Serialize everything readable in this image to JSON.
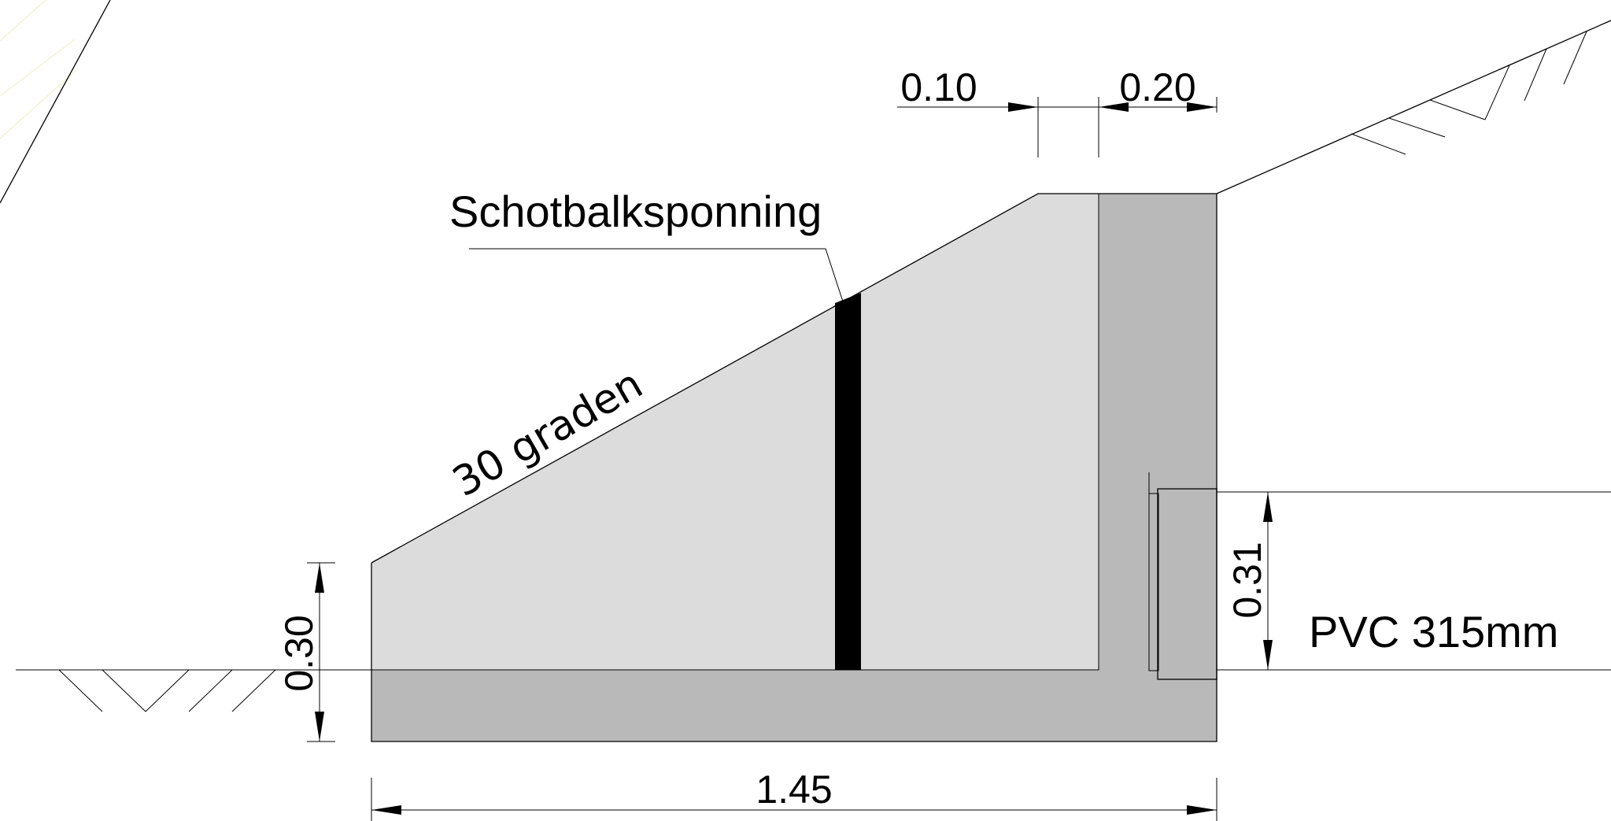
{
  "labels": {
    "dim_top_left": "0.10",
    "dim_top_right": "0.20",
    "dim_left_height": "0.30",
    "dim_pipe_height": "0.31",
    "dim_bottom_width": "1.45",
    "groove_label": "Schotbalksponning",
    "slope_label": "30 graden",
    "pipe_label": "PVC 315mm"
  },
  "colors": {
    "slope_body": "#dcdcdc",
    "base_and_wall": "#b9b9b9",
    "pipe": "#999999",
    "groove": "#000000",
    "line": "#000000",
    "faint_hatch": "#eeeebb"
  }
}
